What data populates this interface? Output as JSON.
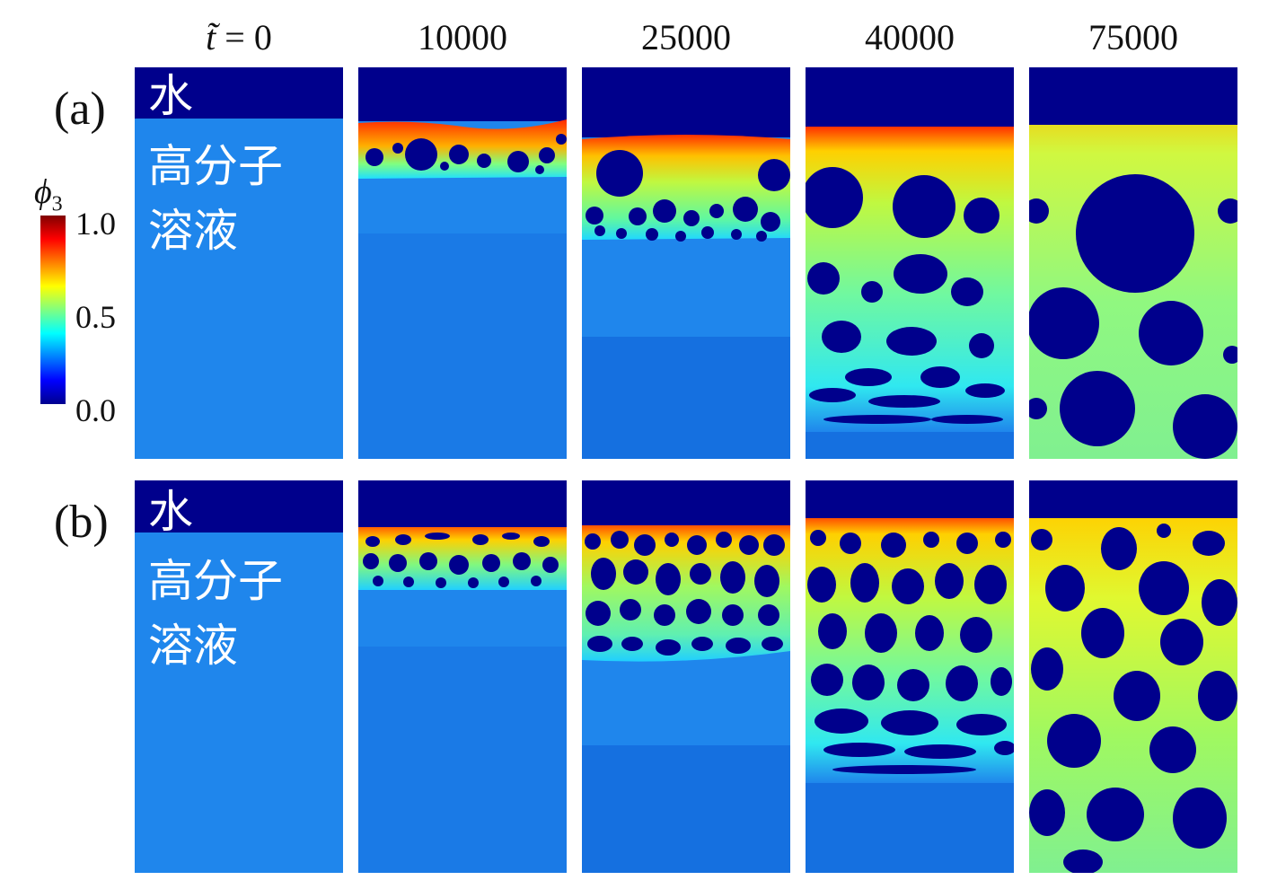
{
  "time_header": {
    "symbol": "t̃",
    "eq": "= 0",
    "values": [
      "10000",
      "25000",
      "40000",
      "75000"
    ]
  },
  "rows": [
    {
      "label": "(a)",
      "water": "水",
      "polymer_line1": "高分子",
      "polymer_line2": "溶液"
    },
    {
      "label": "(b)",
      "water": "水",
      "polymer_line1": "高分子",
      "polymer_line2": "溶液"
    }
  ],
  "colorbar": {
    "title_var": "ϕ",
    "title_sub": "3",
    "ticks": [
      "1.0",
      "0.5",
      "0.0"
    ],
    "colors": [
      "#800000",
      "#ff0000",
      "#ff8000",
      "#ffff00",
      "#80ff80",
      "#00ffff",
      "#0080ff",
      "#0000ff",
      "#00008f"
    ]
  },
  "colors": {
    "water": "#00008c",
    "solution": "#1f86ec",
    "solution_dark": "#1570e0",
    "interface": "#ff3c00",
    "matrix_green": "#7ff07a",
    "matrix_yellow": "#e6f43c",
    "droplet": "#00008c"
  }
}
